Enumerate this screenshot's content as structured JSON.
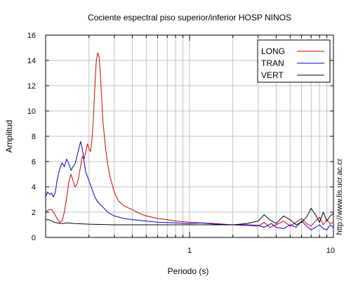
{
  "chart_data": {
    "type": "line",
    "title": "Cociente espectral piso superior/inferior  HOSP NINOS",
    "xlabel": "Periodo (s)",
    "ylabel": "Amplitud",
    "x_scale": "log",
    "xlim": [
      0.1,
      10
    ],
    "ylim": [
      0,
      16
    ],
    "x_tick_labels": [
      "1",
      "10"
    ],
    "y_tick_labels": [
      "0",
      "2",
      "4",
      "6",
      "8",
      "10",
      "12",
      "14",
      "16"
    ],
    "grid": true,
    "legend_position": "top-right",
    "watermark": "http://www.lis.ucr.ac.cr",
    "series": [
      {
        "name": "LONG",
        "color": "#cc0000",
        "points": [
          [
            0.1,
            2.0
          ],
          [
            0.105,
            2.2
          ],
          [
            0.11,
            2.2
          ],
          [
            0.115,
            1.9
          ],
          [
            0.12,
            1.5
          ],
          [
            0.125,
            1.2
          ],
          [
            0.13,
            1.3
          ],
          [
            0.135,
            2.0
          ],
          [
            0.14,
            3.2
          ],
          [
            0.145,
            4.4
          ],
          [
            0.15,
            5.0
          ],
          [
            0.155,
            4.5
          ],
          [
            0.16,
            4.0
          ],
          [
            0.165,
            4.2
          ],
          [
            0.17,
            4.8
          ],
          [
            0.175,
            5.6
          ],
          [
            0.18,
            6.4
          ],
          [
            0.185,
            6.2
          ],
          [
            0.19,
            6.8
          ],
          [
            0.195,
            7.4
          ],
          [
            0.2,
            7.0
          ],
          [
            0.205,
            6.8
          ],
          [
            0.21,
            7.8
          ],
          [
            0.215,
            9.5
          ],
          [
            0.22,
            12.0
          ],
          [
            0.225,
            14.0
          ],
          [
            0.23,
            14.6
          ],
          [
            0.235,
            14.3
          ],
          [
            0.24,
            13.0
          ],
          [
            0.245,
            11.0
          ],
          [
            0.25,
            9.2
          ],
          [
            0.26,
            7.2
          ],
          [
            0.27,
            5.8
          ],
          [
            0.28,
            4.8
          ],
          [
            0.3,
            3.6
          ],
          [
            0.32,
            2.9
          ],
          [
            0.35,
            2.5
          ],
          [
            0.4,
            2.2
          ],
          [
            0.45,
            1.9
          ],
          [
            0.5,
            1.7
          ],
          [
            0.6,
            1.5
          ],
          [
            0.7,
            1.4
          ],
          [
            0.8,
            1.3
          ],
          [
            1.0,
            1.2
          ],
          [
            1.2,
            1.15
          ],
          [
            1.5,
            1.1
          ],
          [
            2.0,
            1.0
          ],
          [
            2.5,
            0.95
          ],
          [
            3.0,
            0.9
          ],
          [
            3.3,
            1.2
          ],
          [
            3.6,
            0.8
          ],
          [
            4.0,
            1.0
          ],
          [
            4.5,
            1.3
          ],
          [
            5.0,
            0.9
          ],
          [
            5.5,
            1.2
          ],
          [
            6.0,
            1.5
          ],
          [
            6.5,
            1.1
          ],
          [
            7.0,
            0.9
          ],
          [
            7.5,
            1.3
          ],
          [
            8.0,
            1.6
          ],
          [
            8.5,
            1.0
          ],
          [
            9.0,
            1.4
          ],
          [
            9.5,
            1.1
          ],
          [
            10.0,
            1.2
          ]
        ]
      },
      {
        "name": "TRAN",
        "color": "#0000cc",
        "points": [
          [
            0.1,
            3.2
          ],
          [
            0.103,
            3.6
          ],
          [
            0.107,
            3.4
          ],
          [
            0.11,
            3.5
          ],
          [
            0.113,
            3.2
          ],
          [
            0.117,
            3.6
          ],
          [
            0.12,
            4.5
          ],
          [
            0.125,
            5.4
          ],
          [
            0.13,
            5.9
          ],
          [
            0.135,
            5.6
          ],
          [
            0.14,
            6.2
          ],
          [
            0.145,
            5.8
          ],
          [
            0.15,
            5.3
          ],
          [
            0.155,
            5.6
          ],
          [
            0.16,
            5.8
          ],
          [
            0.165,
            6.4
          ],
          [
            0.17,
            7.0
          ],
          [
            0.175,
            7.6
          ],
          [
            0.18,
            7.0
          ],
          [
            0.185,
            6.0
          ],
          [
            0.19,
            5.2
          ],
          [
            0.2,
            4.5
          ],
          [
            0.21,
            3.8
          ],
          [
            0.22,
            3.2
          ],
          [
            0.23,
            2.8
          ],
          [
            0.25,
            2.4
          ],
          [
            0.27,
            2.0
          ],
          [
            0.3,
            1.7
          ],
          [
            0.35,
            1.5
          ],
          [
            0.4,
            1.4
          ],
          [
            0.5,
            1.3
          ],
          [
            0.6,
            1.2
          ],
          [
            0.8,
            1.15
          ],
          [
            1.0,
            1.1
          ],
          [
            1.2,
            1.15
          ],
          [
            1.5,
            1.05
          ],
          [
            2.0,
            1.0
          ],
          [
            2.5,
            1.0
          ],
          [
            3.0,
            0.95
          ],
          [
            3.3,
            0.8
          ],
          [
            3.7,
            1.1
          ],
          [
            4.0,
            0.8
          ],
          [
            4.5,
            0.7
          ],
          [
            5.0,
            1.0
          ],
          [
            5.5,
            0.8
          ],
          [
            6.0,
            1.3
          ],
          [
            6.5,
            0.9
          ],
          [
            7.0,
            0.6
          ],
          [
            7.5,
            0.8
          ],
          [
            8.0,
            1.0
          ],
          [
            8.5,
            0.7
          ],
          [
            9.0,
            0.6
          ],
          [
            9.5,
            1.0
          ],
          [
            10.0,
            0.8
          ]
        ]
      },
      {
        "name": "VERT",
        "color": "#000000",
        "points": [
          [
            0.1,
            1.4
          ],
          [
            0.105,
            1.4
          ],
          [
            0.11,
            1.3
          ],
          [
            0.115,
            1.2
          ],
          [
            0.12,
            1.15
          ],
          [
            0.13,
            1.1
          ],
          [
            0.14,
            1.15
          ],
          [
            0.16,
            1.1
          ],
          [
            0.2,
            1.05
          ],
          [
            0.3,
            1.0
          ],
          [
            0.5,
            1.0
          ],
          [
            0.8,
            1.0
          ],
          [
            1.0,
            1.0
          ],
          [
            1.5,
            1.0
          ],
          [
            2.0,
            1.0
          ],
          [
            2.5,
            1.1
          ],
          [
            3.0,
            1.3
          ],
          [
            3.3,
            1.8
          ],
          [
            3.6,
            1.4
          ],
          [
            4.0,
            1.1
          ],
          [
            4.5,
            1.7
          ],
          [
            5.0,
            1.4
          ],
          [
            5.5,
            1.0
          ],
          [
            6.0,
            1.2
          ],
          [
            6.5,
            1.6
          ],
          [
            7.0,
            2.3
          ],
          [
            7.5,
            1.8
          ],
          [
            8.0,
            1.2
          ],
          [
            8.5,
            2.0
          ],
          [
            9.0,
            1.3
          ],
          [
            9.5,
            1.7
          ],
          [
            10.0,
            1.9
          ]
        ]
      }
    ]
  }
}
